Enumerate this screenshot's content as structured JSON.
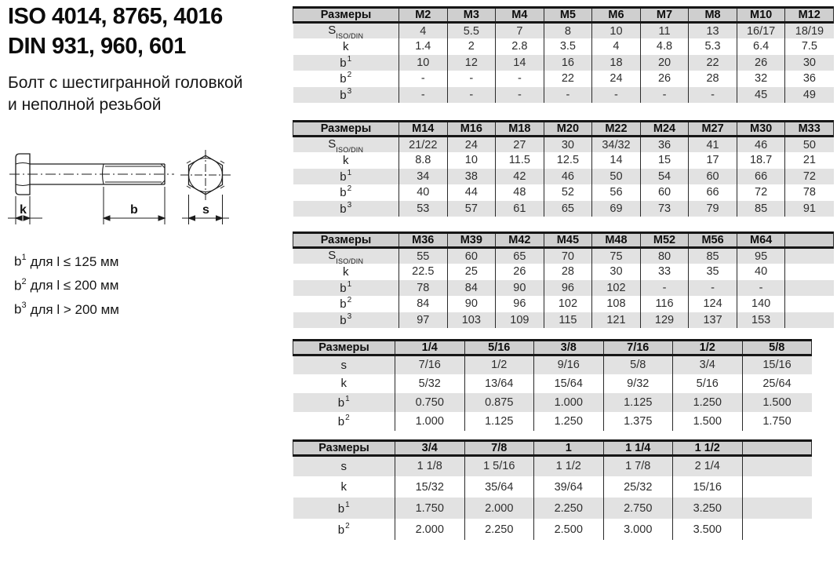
{
  "colors": {
    "header_bg": "#cfcfcf",
    "row_shade": "#e2e2e2",
    "border": "#161616"
  },
  "header": {
    "title_line1": "ISO 4014, 8765, 4016",
    "title_line2": "DIN 931, 960, 601",
    "subtitle_line1": "Болт с шестигранной головкой",
    "subtitle_line2": "и неполной резьбой"
  },
  "drawing": {
    "dim_k": "k",
    "dim_b": "b",
    "dim_s": "s"
  },
  "notes": [
    {
      "base": "b",
      "sup": "1",
      "text": "для l ≤ 125 мм"
    },
    {
      "base": "b",
      "sup": "2",
      "text": "для l ≤ 200 мм"
    },
    {
      "base": "b",
      "sup": "3",
      "text": "для l > 200 мм"
    }
  ],
  "tables": [
    {
      "columns": [
        "Размеры",
        "M2",
        "M3",
        "M4",
        "M5",
        "M6",
        "M7",
        "M8",
        "M10",
        "M12"
      ],
      "rows": [
        {
          "label": {
            "base": "S",
            "sub": "ISO/DIN"
          },
          "values": [
            "4",
            "5.5",
            "7",
            "8",
            "10",
            "11",
            "13",
            "16/17",
            "18/19"
          ]
        },
        {
          "label": {
            "base": "k"
          },
          "values": [
            "1.4",
            "2",
            "2.8",
            "3.5",
            "4",
            "4.8",
            "5.3",
            "6.4",
            "7.5"
          ]
        },
        {
          "label": {
            "base": "b",
            "sup": "1"
          },
          "values": [
            "10",
            "12",
            "14",
            "16",
            "18",
            "20",
            "22",
            "26",
            "30"
          ]
        },
        {
          "label": {
            "base": "b",
            "sup": "2"
          },
          "values": [
            "-",
            "-",
            "-",
            "22",
            "24",
            "26",
            "28",
            "32",
            "36"
          ]
        },
        {
          "label": {
            "base": "b",
            "sup": "3"
          },
          "values": [
            "-",
            "-",
            "-",
            "-",
            "-",
            "-",
            "-",
            "45",
            "49"
          ]
        }
      ]
    },
    {
      "columns": [
        "Размеры",
        "M14",
        "M16",
        "M18",
        "M20",
        "M22",
        "M24",
        "M27",
        "M30",
        "M33"
      ],
      "rows": [
        {
          "label": {
            "base": "S",
            "sub": "ISO/DIN"
          },
          "values": [
            "21/22",
            "24",
            "27",
            "30",
            "34/32",
            "36",
            "41",
            "46",
            "50"
          ]
        },
        {
          "label": {
            "base": "k"
          },
          "values": [
            "8.8",
            "10",
            "11.5",
            "12.5",
            "14",
            "15",
            "17",
            "18.7",
            "21"
          ]
        },
        {
          "label": {
            "base": "b",
            "sup": "1"
          },
          "values": [
            "34",
            "38",
            "42",
            "46",
            "50",
            "54",
            "60",
            "66",
            "72"
          ]
        },
        {
          "label": {
            "base": "b",
            "sup": "2"
          },
          "values": [
            "40",
            "44",
            "48",
            "52",
            "56",
            "60",
            "66",
            "72",
            "78"
          ]
        },
        {
          "label": {
            "base": "b",
            "sup": "3"
          },
          "values": [
            "53",
            "57",
            "61",
            "65",
            "69",
            "73",
            "79",
            "85",
            "91"
          ]
        }
      ]
    },
    {
      "columns": [
        "Размеры",
        "M36",
        "M39",
        "M42",
        "M45",
        "M48",
        "M52",
        "M56",
        "M64",
        ""
      ],
      "rows": [
        {
          "label": {
            "base": "S",
            "sub": "ISO/DIN"
          },
          "values": [
            "55",
            "60",
            "65",
            "70",
            "75",
            "80",
            "85",
            "95",
            ""
          ]
        },
        {
          "label": {
            "base": "k"
          },
          "values": [
            "22.5",
            "25",
            "26",
            "28",
            "30",
            "33",
            "35",
            "40",
            ""
          ]
        },
        {
          "label": {
            "base": "b",
            "sup": "1"
          },
          "values": [
            "78",
            "84",
            "90",
            "96",
            "102",
            "-",
            "-",
            "-",
            ""
          ]
        },
        {
          "label": {
            "base": "b",
            "sup": "2"
          },
          "values": [
            "84",
            "90",
            "96",
            "102",
            "108",
            "116",
            "124",
            "140",
            ""
          ]
        },
        {
          "label": {
            "base": "b",
            "sup": "3"
          },
          "values": [
            "97",
            "103",
            "109",
            "115",
            "121",
            "129",
            "137",
            "153",
            ""
          ]
        }
      ]
    },
    {
      "columns": [
        "Размеры",
        "1/4",
        "5/16",
        "3/8",
        "7/16",
        "1/2",
        "5/8"
      ],
      "rows": [
        {
          "label": {
            "base": "s"
          },
          "values": [
            "7/16",
            "1/2",
            "9/16",
            "5/8",
            "3/4",
            "15/16"
          ]
        },
        {
          "label": {
            "base": "k"
          },
          "values": [
            "5/32",
            "13/64",
            "15/64",
            "9/32",
            "5/16",
            "25/64"
          ]
        },
        {
          "label": {
            "base": "b",
            "sup": "1"
          },
          "values": [
            "0.750",
            "0.875",
            "1.000",
            "1.125",
            "1.250",
            "1.500"
          ]
        },
        {
          "label": {
            "base": "b",
            "sup": "2"
          },
          "values": [
            "1.000",
            "1.125",
            "1.250",
            "1.375",
            "1.500",
            "1.750"
          ]
        }
      ]
    },
    {
      "columns": [
        "Размеры",
        "3/4",
        "7/8",
        "1",
        "1 1/4",
        "1 1/2",
        ""
      ],
      "rows": [
        {
          "label": {
            "base": "s"
          },
          "values": [
            "1 1/8",
            "1 5/16",
            "1 1/2",
            "1 7/8",
            "2 1/4",
            ""
          ]
        },
        {
          "label": {
            "base": "k"
          },
          "values": [
            "15/32",
            "35/64",
            "39/64",
            "25/32",
            "15/16",
            ""
          ]
        },
        {
          "label": {
            "base": "b",
            "sup": "1"
          },
          "values": [
            "1.750",
            "2.000",
            "2.250",
            "2.750",
            "3.250",
            ""
          ]
        },
        {
          "label": {
            "base": "b",
            "sup": "2"
          },
          "values": [
            "2.000",
            "2.250",
            "2.500",
            "3.000",
            "3.500",
            ""
          ]
        }
      ]
    }
  ]
}
